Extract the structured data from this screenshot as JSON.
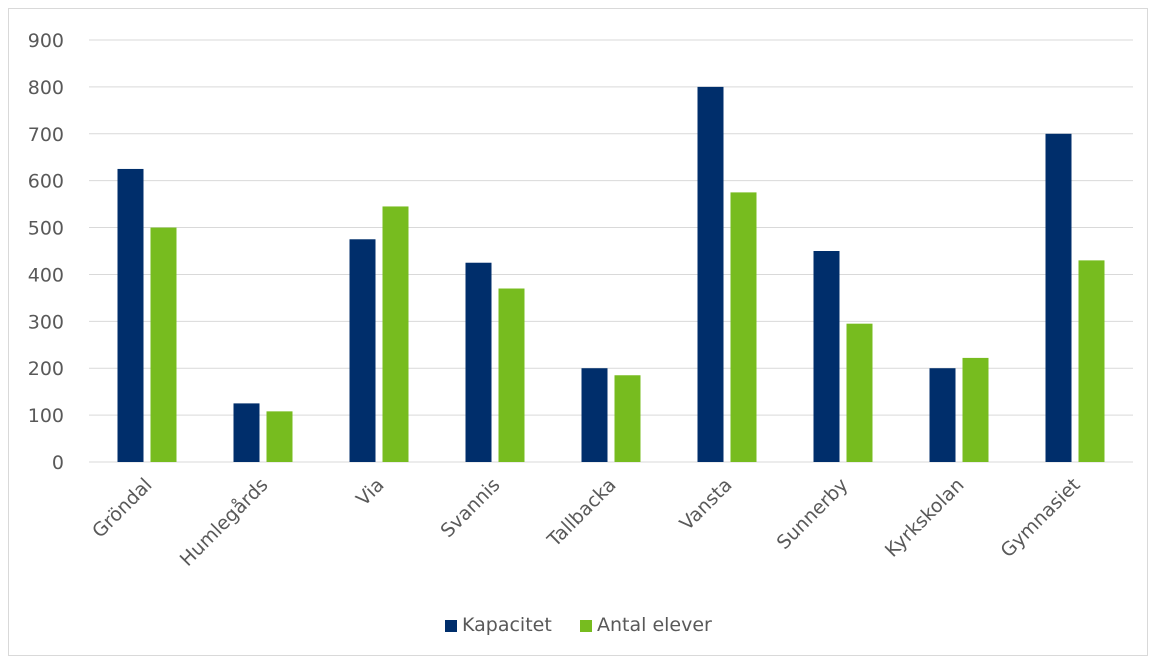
{
  "chart_data": {
    "type": "bar",
    "categories": [
      "Gröndal",
      "Humlegårds",
      "Via",
      "Svannis",
      "Tallbacka",
      "Vansta",
      "Sunnerby",
      "Kyrkskolan",
      "Gymnasiet"
    ],
    "series": [
      {
        "name": "Kapacitet",
        "color": "#002e6b",
        "values": [
          625,
          125,
          475,
          425,
          200,
          800,
          450,
          200,
          700
        ]
      },
      {
        "name": "Antal elever",
        "color": "#77bc1f",
        "values": [
          500,
          108,
          545,
          370,
          185,
          575,
          295,
          222,
          430
        ]
      }
    ],
    "yticks": [
      "0",
      "100",
      "200",
      "300",
      "400",
      "500",
      "600",
      "700",
      "800",
      "900"
    ],
    "ylim": [
      0,
      900
    ],
    "grid": true,
    "legend": "bottom",
    "title": "",
    "xlabel": "",
    "ylabel": ""
  }
}
